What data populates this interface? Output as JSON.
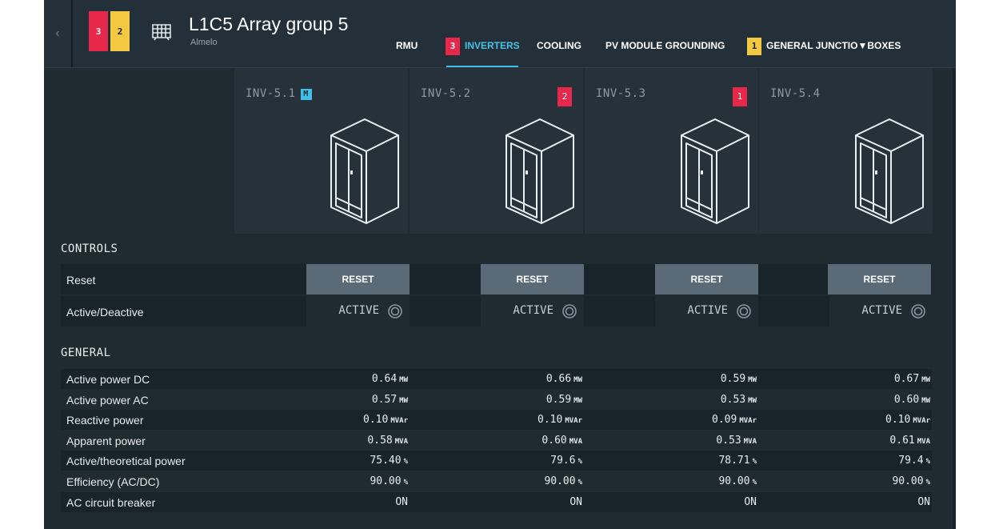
{
  "header": {
    "back_icon": "chevron-left-icon",
    "back_glyph": "‹",
    "alarm_red": "3",
    "alarm_yellow": "2",
    "site_icon": "solar-panel-icon",
    "title": "L1C5 Array group 5",
    "subtitle": "Almelo",
    "tabs": [
      {
        "label": "RMU",
        "badge": ""
      },
      {
        "label": "INVERTERS",
        "badge": "3"
      },
      {
        "label": "COOLING",
        "badge": ""
      },
      {
        "label": "PV MODULE GROUNDING",
        "badge": ""
      },
      {
        "label": "GENERAL JUNCTIO▼BOXES",
        "badge": "1"
      }
    ],
    "active_tab": "INVERTERS"
  },
  "inverters": [
    {
      "name": "INV-5.1",
      "tag": "M",
      "badge": "",
      "icon": "inverter-cabinet-icon"
    },
    {
      "name": "INV-5.2",
      "tag": "",
      "badge": "2",
      "icon": "inverter-cabinet-icon"
    },
    {
      "name": "INV-5.3",
      "tag": "",
      "badge": "1",
      "icon": "inverter-cabinet-icon"
    },
    {
      "name": "INV-5.4",
      "tag": "",
      "badge": "",
      "icon": "inverter-cabinet-icon"
    }
  ],
  "controls": {
    "title": "CONTROLS",
    "reset_label": "Reset",
    "reset_button": "RESET",
    "active_label": "Active/Deactive",
    "active_states": [
      "ACTIVE",
      "ACTIVE",
      "ACTIVE",
      "ACTIVE"
    ]
  },
  "general": {
    "title": "GENERAL",
    "rows": [
      {
        "label": "Active power DC",
        "unit": "MW",
        "values": [
          "0.64",
          "0.66",
          "0.59",
          "0.67"
        ]
      },
      {
        "label": "Active power AC",
        "unit": "MW",
        "values": [
          "0.57",
          "0.59",
          "0.53",
          "0.60"
        ]
      },
      {
        "label": "Reactive power",
        "unit": "MVAr",
        "values": [
          "0.10",
          "0.10",
          "0.09",
          "0.10"
        ]
      },
      {
        "label": "Apparent power",
        "unit": "MVA",
        "values": [
          "0.58",
          "0.60",
          "0.53",
          "0.61"
        ]
      },
      {
        "label": "Active/theoretical power",
        "unit": "%",
        "values": [
          "75.40",
          "79.6",
          "78.71",
          "79.4"
        ]
      },
      {
        "label": "Efficiency (AC/DC)",
        "unit": "%",
        "values": [
          "90.00",
          "90.00",
          "90.00",
          "90.00"
        ]
      },
      {
        "label": "AC circuit breaker",
        "unit": "",
        "values": [
          "ON",
          "ON",
          "ON",
          "ON"
        ]
      }
    ]
  },
  "colors": {
    "background": "#1f2a31",
    "accent": "#3ec0e8",
    "alarm_red": "#e8284b",
    "alarm_yellow": "#f3c941",
    "button": "#5a6a76"
  }
}
